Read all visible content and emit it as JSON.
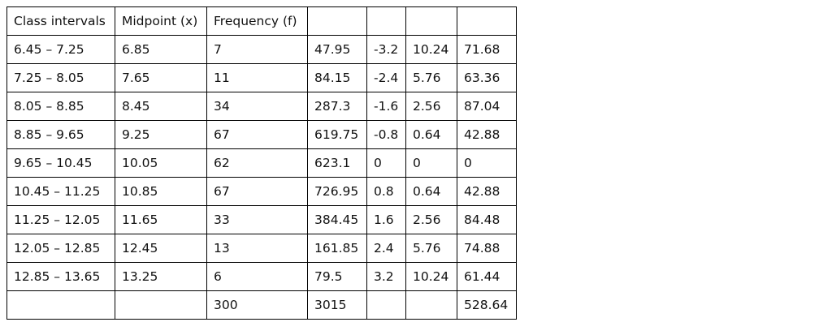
{
  "table": {
    "header": [
      "Class intervals",
      "Midpoint (x)",
      "Frequency (f)",
      null,
      null,
      null,
      null
    ],
    "rows": [
      [
        "6.45 – 7.25",
        "6.85",
        "7",
        "47.95",
        "-3.2",
        "10.24",
        "71.68"
      ],
      [
        "7.25 – 8.05",
        "7.65",
        "11",
        "84.15",
        "-2.4",
        "5.76",
        "63.36"
      ],
      [
        "8.05 – 8.85",
        "8.45",
        "34",
        "287.3",
        "-1.6",
        "2.56",
        "87.04"
      ],
      [
        "8.85 – 9.65",
        "9.25",
        "67",
        "619.75",
        "-0.8",
        "0.64",
        "42.88"
      ],
      [
        "9.65 – 10.45",
        "10.05",
        "62",
        "623.1",
        "0",
        "0",
        "0"
      ],
      [
        "10.45 – 11.25",
        "10.85",
        "67",
        "726.95",
        "0.8",
        "0.64",
        "42.88"
      ],
      [
        "11.25 – 12.05",
        "11.65",
        "33",
        "384.45",
        "1.6",
        "2.56",
        "84.48"
      ],
      [
        "12.05 – 12.85",
        "12.45",
        "13",
        "161.85",
        "2.4",
        "5.76",
        "74.88"
      ],
      [
        "12.85 – 13.65",
        "13.25",
        "6",
        "79.5",
        "3.2",
        "10.24",
        "61.44"
      ],
      [
        null,
        null,
        "300",
        "3015",
        null,
        null,
        "528.64"
      ]
    ]
  }
}
